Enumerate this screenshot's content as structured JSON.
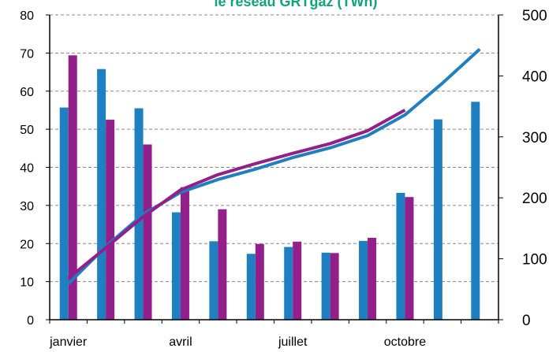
{
  "chart_data": {
    "type": "bar-line",
    "title": "le réseau GRTgaz (TWh)",
    "categories": [
      "janvier",
      null,
      null,
      "avril",
      null,
      null,
      "juillet",
      null,
      null,
      "octobre",
      null,
      null
    ],
    "series": [
      {
        "type": "bar",
        "color": "#1f7fc1",
        "values": [
          55.7,
          65.8,
          55.5,
          28.2,
          20.6,
          17.3,
          19.1,
          17.6,
          20.7,
          33.3,
          52.6,
          57.2
        ]
      },
      {
        "type": "bar",
        "color": "#93208a",
        "values": [
          69.4,
          52.5,
          46.0,
          34.8,
          29.0,
          19.9,
          20.5,
          17.5,
          21.5,
          32.2,
          null,
          null
        ]
      },
      {
        "type": "line",
        "axis": "y2",
        "color": "#1f7fc1",
        "values": [
          59,
          120,
          173,
          209,
          230,
          247,
          266,
          282,
          302,
          336,
          388,
          444
        ]
      },
      {
        "type": "line",
        "axis": "y2",
        "color": "#93208a",
        "values": [
          68,
          118,
          169,
          213,
          238,
          256,
          273,
          289,
          310,
          344,
          null,
          null
        ]
      }
    ],
    "ylim": [
      0,
      80
    ],
    "yticks": [
      0,
      10,
      20,
      30,
      40,
      50,
      60,
      70,
      80
    ],
    "y2lim": [
      0,
      500
    ],
    "y2ticks": [
      0,
      100,
      200,
      300,
      400,
      500
    ],
    "grid": true
  }
}
